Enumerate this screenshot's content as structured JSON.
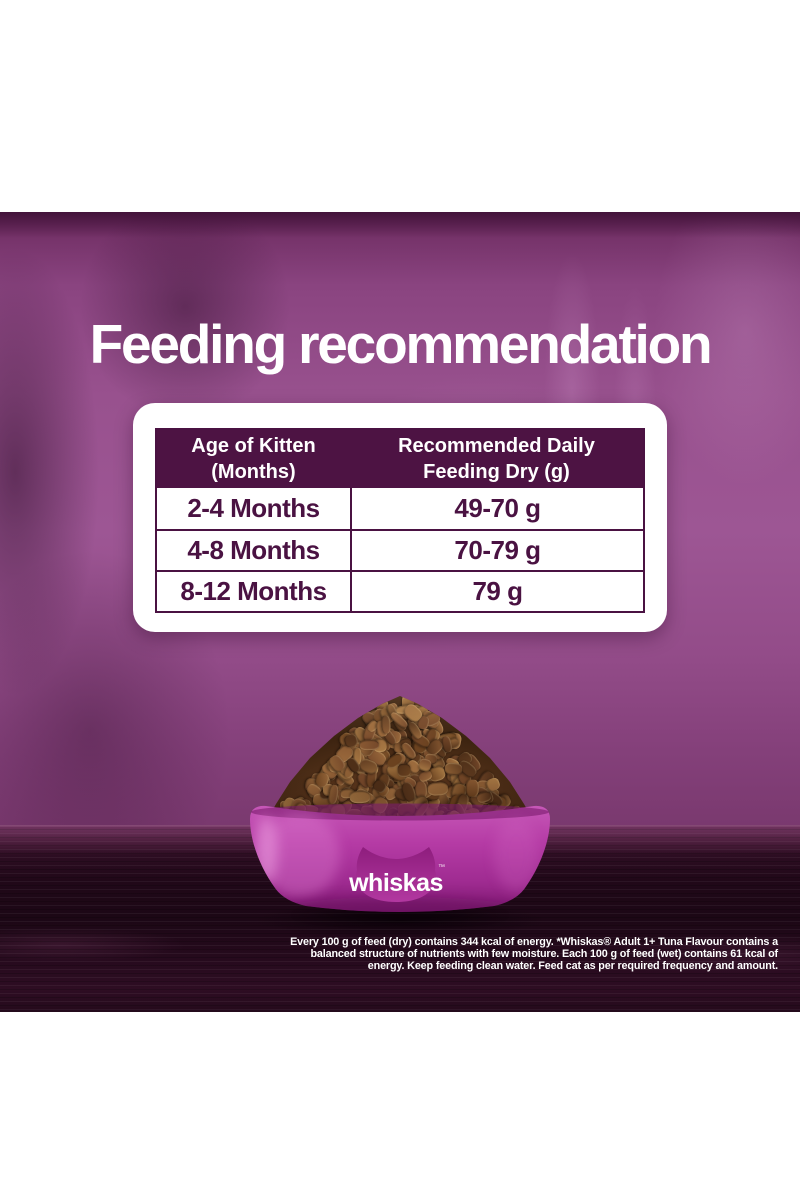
{
  "title": "Feeding recommendation",
  "table": {
    "columns": [
      {
        "lines": [
          "Age of Kitten",
          "(Months)"
        ]
      },
      {
        "lines": [
          "Recommended Daily",
          "Feeding Dry (g)"
        ]
      }
    ],
    "rows": [
      {
        "age": "2-4 Months",
        "amount": "49-70 g"
      },
      {
        "age": "4-8 Months",
        "amount": "70-79 g"
      },
      {
        "age": "8-12 Months",
        "amount": "79 g"
      }
    ]
  },
  "chart_data": {
    "type": "table",
    "title": "Feeding recommendation",
    "columns": [
      "Age of Kitten (Months)",
      "Recommended Daily Feeding Dry (g)"
    ],
    "rows": [
      [
        "2-4 Months",
        "49-70 g"
      ],
      [
        "4-8 Months",
        "70-79 g"
      ],
      [
        "8-12 Months",
        "79 g"
      ]
    ]
  },
  "bowl": {
    "brand": "whiskas",
    "trademark": "™"
  },
  "disclaimer": {
    "lines": [
      "Every 100 g of feed (dry) contains 344 kcal of energy. *Whiskas® Adult 1+ Tuna Flavour contains a",
      "balanced structure of nutrients with few moisture. Each 100 g of feed (wet) contains 61 kcal of",
      "energy. Keep feeding clean water. Feed cat as per required frequency and amount."
    ]
  },
  "colors": {
    "table_header_bg": "#4d1343",
    "table_text": "#4a1242",
    "title_text": "#ffffff",
    "wall_base": "#9d5694",
    "floor_base": "#200818",
    "bowl_top": "#c657b7",
    "bowl_bottom": "#831b76",
    "cat_head": "#8e1d7d",
    "kibble_palette": [
      "#8a5a33",
      "#9c6b3d",
      "#75482a",
      "#5e3a1f",
      "#a87a45",
      "#4e2f18",
      "#6b421f",
      "#8f6236"
    ]
  }
}
